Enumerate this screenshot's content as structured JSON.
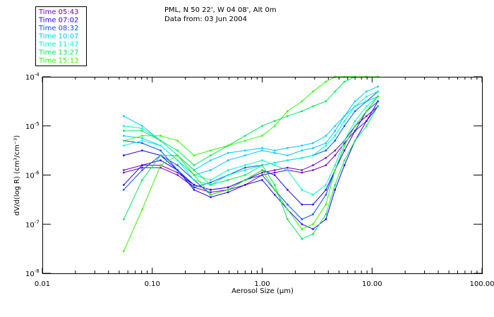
{
  "chart_data": {
    "type": "line",
    "title": "PML, N 50 22', W 04 08', Alt 0m",
    "subtitle": "Data from: 03 Jun 2004",
    "xlabel": "Aerosol Size (µm)",
    "ylabel": "dV/d(log R) (cm³/cm⁻³)",
    "x_scale": "log",
    "y_scale": "log",
    "xlim": [
      0.01,
      100
    ],
    "ylim": [
      1e-08,
      0.0001
    ],
    "x_ticks": [
      {
        "value": 0.01,
        "label": "0.01"
      },
      {
        "value": 0.1,
        "label": "0.10"
      },
      {
        "value": 1,
        "label": "1.00"
      },
      {
        "value": 10,
        "label": "10.00"
      },
      {
        "value": 100,
        "label": "100.00"
      }
    ],
    "y_ticks": [
      {
        "exp": -4,
        "base": "10",
        "sup": "-4"
      },
      {
        "exp": -5,
        "base": "10",
        "sup": "-5"
      },
      {
        "exp": -6,
        "base": "10",
        "sup": "-6"
      },
      {
        "exp": -7,
        "base": "10",
        "sup": "-7"
      },
      {
        "exp": -8,
        "base": "10",
        "sup": "-8"
      }
    ],
    "legend_position": "top-left",
    "legend": [
      {
        "label": "Time 05:43",
        "color": "#7000c0"
      },
      {
        "label": "Time 07:02",
        "color": "#2000f0"
      },
      {
        "label": "Time 08:32",
        "color": "#0050ff"
      },
      {
        "label": "Time 10:07",
        "color": "#00c8ff"
      },
      {
        "label": "Time 11:47",
        "color": "#00f8c8"
      },
      {
        "label": "Time 13:27",
        "color": "#00e858"
      },
      {
        "label": "Time 15:13",
        "color": "#30f800"
      }
    ],
    "x": [
      0.055,
      0.081,
      0.119,
      0.17,
      0.24,
      0.34,
      0.49,
      0.7,
      1.0,
      1.3,
      1.7,
      2.3,
      2.9,
      3.8,
      4.6,
      5.6,
      7.0,
      8.9,
      11.3
    ],
    "series": [
      {
        "name": "Time 05:43",
        "group": 0,
        "log10_values": [
          -5.95,
          -5.85,
          -5.85,
          -6.0,
          -6.25,
          -6.35,
          -6.3,
          -6.2,
          -6.0,
          -5.95,
          -5.9,
          -5.95,
          -5.9,
          -5.8,
          -5.6,
          -5.35,
          -5.1,
          -4.9,
          -4.6
        ]
      },
      {
        "name": "Time 05:43",
        "group": 0,
        "log10_values": [
          -5.9,
          -5.8,
          -5.8,
          -5.95,
          -6.2,
          -6.3,
          -6.25,
          -6.1,
          -5.95,
          -5.9,
          -5.85,
          -5.9,
          -5.8,
          -5.65,
          -5.5,
          -5.3,
          -5.0,
          -4.8,
          -4.6
        ]
      },
      {
        "name": "Time 07:02",
        "group": 1,
        "log10_values": [
          -6.2,
          -5.8,
          -5.7,
          -5.9,
          -6.3,
          -6.45,
          -6.35,
          -6.2,
          -6.1,
          -6.4,
          -6.7,
          -7.0,
          -7.1,
          -6.9,
          -6.3,
          -5.8,
          -5.3,
          -4.9,
          -4.5
        ]
      },
      {
        "name": "Time 07:02",
        "group": 1,
        "log10_values": [
          -5.6,
          -5.5,
          -5.6,
          -5.9,
          -6.2,
          -6.3,
          -6.25,
          -6.1,
          -5.9,
          -6.0,
          -6.3,
          -6.6,
          -6.6,
          -6.3,
          -5.9,
          -5.5,
          -5.1,
          -4.7,
          -4.4
        ]
      },
      {
        "name": "Time 08:32",
        "group": 2,
        "log10_values": [
          -5.3,
          -5.35,
          -5.5,
          -5.9,
          -6.25,
          -6.15,
          -6.0,
          -5.85,
          -5.8,
          -5.75,
          -5.7,
          -5.65,
          -5.6,
          -5.5,
          -5.3,
          -5.0,
          -4.7,
          -4.5,
          -4.3
        ]
      },
      {
        "name": "Time 08:32",
        "group": 2,
        "log10_values": [
          -6.3,
          -5.9,
          -5.6,
          -5.8,
          -6.1,
          -6.4,
          -6.3,
          -6.1,
          -6.0,
          -6.3,
          -6.6,
          -6.9,
          -6.8,
          -6.4,
          -5.9,
          -5.4,
          -5.0,
          -4.7,
          -4.5
        ]
      },
      {
        "name": "Time 10:07",
        "group": 3,
        "log10_values": [
          -4.8,
          -5.0,
          -5.3,
          -5.6,
          -5.9,
          -5.7,
          -5.55,
          -5.5,
          -5.45,
          -5.5,
          -5.45,
          -5.4,
          -5.35,
          -5.2,
          -5.0,
          -4.8,
          -4.6,
          -4.5,
          -4.4
        ]
      },
      {
        "name": "Time 10:07",
        "group": 3,
        "log10_values": [
          -5.2,
          -5.25,
          -5.4,
          -5.7,
          -6.0,
          -5.9,
          -5.7,
          -5.6,
          -5.5,
          -5.55,
          -5.6,
          -5.5,
          -5.45,
          -5.35,
          -5.1,
          -4.8,
          -4.5,
          -4.3,
          -4.2
        ]
      },
      {
        "name": "Time 11:47",
        "group": 4,
        "log10_values": [
          -5.0,
          -5.05,
          -5.3,
          -5.6,
          -6.0,
          -6.1,
          -5.9,
          -5.8,
          -5.7,
          -5.8,
          -5.9,
          -6.3,
          -6.4,
          -6.2,
          -5.8,
          -5.3,
          -4.9,
          -4.6,
          -4.4
        ]
      },
      {
        "name": "Time 11:47",
        "group": 4,
        "log10_values": [
          -5.4,
          -5.3,
          -5.4,
          -5.7,
          -6.1,
          -6.2,
          -6.0,
          -5.9,
          -5.8,
          -5.75,
          -5.7,
          -5.65,
          -5.6,
          -5.4,
          -5.2,
          -4.9,
          -4.6,
          -4.4,
          -4.3
        ]
      },
      {
        "name": "Time 13:27",
        "group": 5,
        "log10_values": [
          -6.9,
          -6.1,
          -5.6,
          -5.6,
          -5.9,
          -6.2,
          -6.1,
          -6.0,
          -5.8,
          -6.2,
          -6.9,
          -7.3,
          -7.2,
          -6.8,
          -6.2,
          -5.7,
          -5.3,
          -5.0,
          -4.6
        ]
      },
      {
        "name": "Time 13:27",
        "group": 5,
        "log10_values": [
          -5.1,
          -5.1,
          -5.3,
          -5.5,
          -5.8,
          -5.6,
          -5.4,
          -5.2,
          -5.0,
          -4.9,
          -4.8,
          -4.7,
          -4.6,
          -4.5,
          -4.3,
          -4.1,
          -4.0,
          -4.0,
          -4.0
        ]
      },
      {
        "name": "Time 15:13",
        "group": 6,
        "log10_values": [
          -7.55,
          -6.7,
          -5.8,
          -5.6,
          -6.0,
          -6.4,
          -6.3,
          -6.1,
          -5.9,
          -6.3,
          -6.7,
          -7.1,
          -7.0,
          -6.6,
          -5.9,
          -5.4,
          -5.0,
          -4.7,
          -4.4
        ]
      },
      {
        "name": "Time 15:13",
        "group": 6,
        "log10_values": [
          -5.3,
          -5.2,
          -5.2,
          -5.3,
          -5.6,
          -5.5,
          -5.4,
          -5.3,
          -5.2,
          -5.0,
          -4.7,
          -4.5,
          -4.3,
          -4.1,
          -4.0,
          -4.0,
          -4.0,
          -4.0,
          -4.0
        ]
      }
    ]
  }
}
